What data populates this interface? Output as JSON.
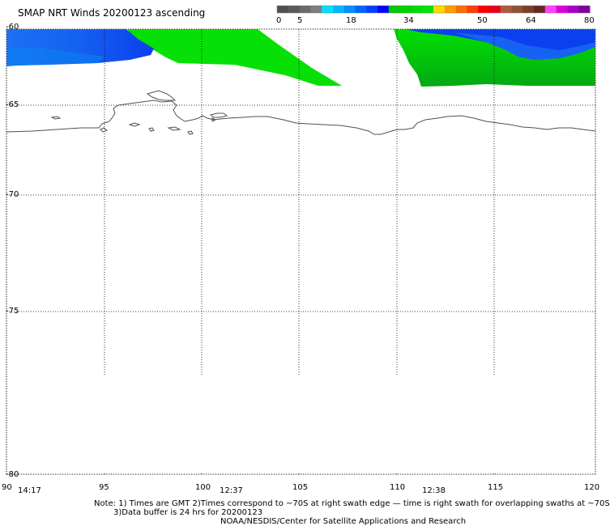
{
  "title": "SMAP NRT Winds 20200123 ascending",
  "colorbar": {
    "tick_labels": [
      "0",
      "5",
      "18",
      "34",
      "50",
      "64",
      "80"
    ],
    "colors": [
      "#505050",
      "#5a5a5a",
      "#6a6a6a",
      "#7e7e7e",
      "#00e0ff",
      "#00b8ff",
      "#0090ff",
      "#0064ff",
      "#0040ff",
      "#0000ff",
      "#00c800",
      "#00d200",
      "#00dc00",
      "#00e600",
      "#ffd800",
      "#ff9c00",
      "#ff6c00",
      "#ff3c00",
      "#ff0000",
      "#e8001c",
      "#b05a3c",
      "#945036",
      "#7a402c",
      "#64281e",
      "#ff40ff",
      "#dc00e0",
      "#aa00c8",
      "#8000a0"
    ]
  },
  "axes": {
    "lat_labels": [
      "-60",
      "-65",
      "-70",
      "-75",
      "-80"
    ],
    "lon_labels": [
      "90",
      "95",
      "100",
      "105",
      "110",
      "115",
      "120"
    ],
    "lon_range": [
      90,
      120
    ],
    "lat_range": [
      -60,
      -80
    ]
  },
  "swath_times": [
    "14:17",
    "12:37",
    "12:38"
  ],
  "notes": {
    "line1": "Note: 1) Times are GMT 2)Times correspond to ~70S at right swath edge — time is right swath for overlapping swaths at ~70S",
    "line2": "3)Data buffer is 24 hrs for 20200123",
    "line3": "NOAA/NESDIS/Center for Satellite Applications and Research"
  },
  "colors": {
    "wind_blue": "#1c5cf4",
    "wind_cyan": "#06a4ee",
    "wind_green": "#06e006",
    "wind_dark_green": "#01a812",
    "coastline": "#505050",
    "grid": "#000000"
  }
}
